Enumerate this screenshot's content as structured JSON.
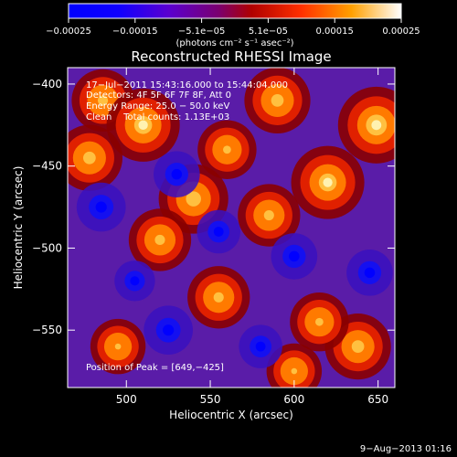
{
  "chart_data": {
    "type": "heatmap",
    "title": "Reconstructed RHESSI Image",
    "xlabel": "Heliocentric X (arcsec)",
    "ylabel": "Heliocentric Y (arcsec)",
    "xlim": [
      465,
      660
    ],
    "ylim": [
      -585,
      -390
    ],
    "x_ticks": [
      500,
      550,
      600,
      650
    ],
    "y_ticks": [
      -550,
      -500,
      -450,
      -400
    ],
    "x_tick_labels": [
      "500",
      "550",
      "600",
      "650"
    ],
    "y_tick_labels": [
      "−550",
      "−500",
      "−450",
      "−400"
    ],
    "colorbar": {
      "range": [
        -0.00025,
        0.00025
      ],
      "tick_labels": [
        "−0.00025",
        "−0.00015",
        "−5.1e−05",
        "5.1e−05",
        "0.00015",
        "0.00025"
      ],
      "units_label": "(photons cm⁻² s⁻¹ asec⁻²)"
    },
    "annotations": [
      "17−Jul−2011 15:43:16.000 to 15:44:04.000",
      "Detectors: 4F 5F 6F 7F 8F, Att 0",
      "Energy Range: 25.0 − 50.0 keV",
      "Clean    Total counts: 1.13E+03",
      "Position of Peak = [649,−425]"
    ],
    "peak": {
      "x": 649,
      "y": -425
    },
    "blobs": [
      {
        "x": 486,
        "y": -410,
        "v": 0.6
      },
      {
        "x": 510,
        "y": -425,
        "v": 0.9
      },
      {
        "x": 478,
        "y": -445,
        "v": 0.7
      },
      {
        "x": 540,
        "y": -470,
        "v": 0.8
      },
      {
        "x": 560,
        "y": -440,
        "v": 0.5
      },
      {
        "x": 590,
        "y": -410,
        "v": 0.7
      },
      {
        "x": 620,
        "y": -460,
        "v": 0.9
      },
      {
        "x": 649,
        "y": -425,
        "v": 1.0
      },
      {
        "x": 585,
        "y": -480,
        "v": 0.6
      },
      {
        "x": 555,
        "y": -530,
        "v": 0.6
      },
      {
        "x": 520,
        "y": -495,
        "v": 0.6
      },
      {
        "x": 638,
        "y": -560,
        "v": 0.7
      },
      {
        "x": 615,
        "y": -545,
        "v": 0.5
      },
      {
        "x": 495,
        "y": -560,
        "v": 0.4
      },
      {
        "x": 600,
        "y": -575,
        "v": 0.4
      },
      {
        "x": 530,
        "y": -455,
        "v": -0.5
      },
      {
        "x": 485,
        "y": -475,
        "v": -0.6
      },
      {
        "x": 555,
        "y": -490,
        "v": -0.4
      },
      {
        "x": 600,
        "y": -505,
        "v": -0.5
      },
      {
        "x": 525,
        "y": -550,
        "v": -0.6
      },
      {
        "x": 580,
        "y": -560,
        "v": -0.4
      },
      {
        "x": 645,
        "y": -515,
        "v": -0.5
      },
      {
        "x": 505,
        "y": -520,
        "v": -0.3
      }
    ]
  },
  "footer": {
    "date": "9−Aug−2013 01:16"
  }
}
